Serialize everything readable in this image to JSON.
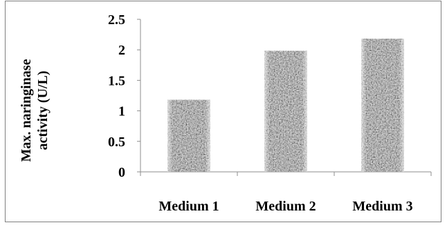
{
  "chart_data": {
    "type": "bar",
    "title": "",
    "xlabel": "",
    "ylabel": "Max. naringinase activity (U/L)",
    "ylabel_lines": [
      "Max. naringinase",
      "activity (U/L)"
    ],
    "categories": [
      "Medium 1",
      "Medium 2",
      "Medium 3"
    ],
    "values": [
      1.18,
      1.98,
      2.18
    ],
    "ylim": [
      0,
      2.5
    ],
    "yticks": [
      "0",
      "0.5",
      "1",
      "1.5",
      "2",
      "2.5"
    ],
    "grid": false,
    "legend": "none",
    "bar_style": "gray granite texture"
  }
}
